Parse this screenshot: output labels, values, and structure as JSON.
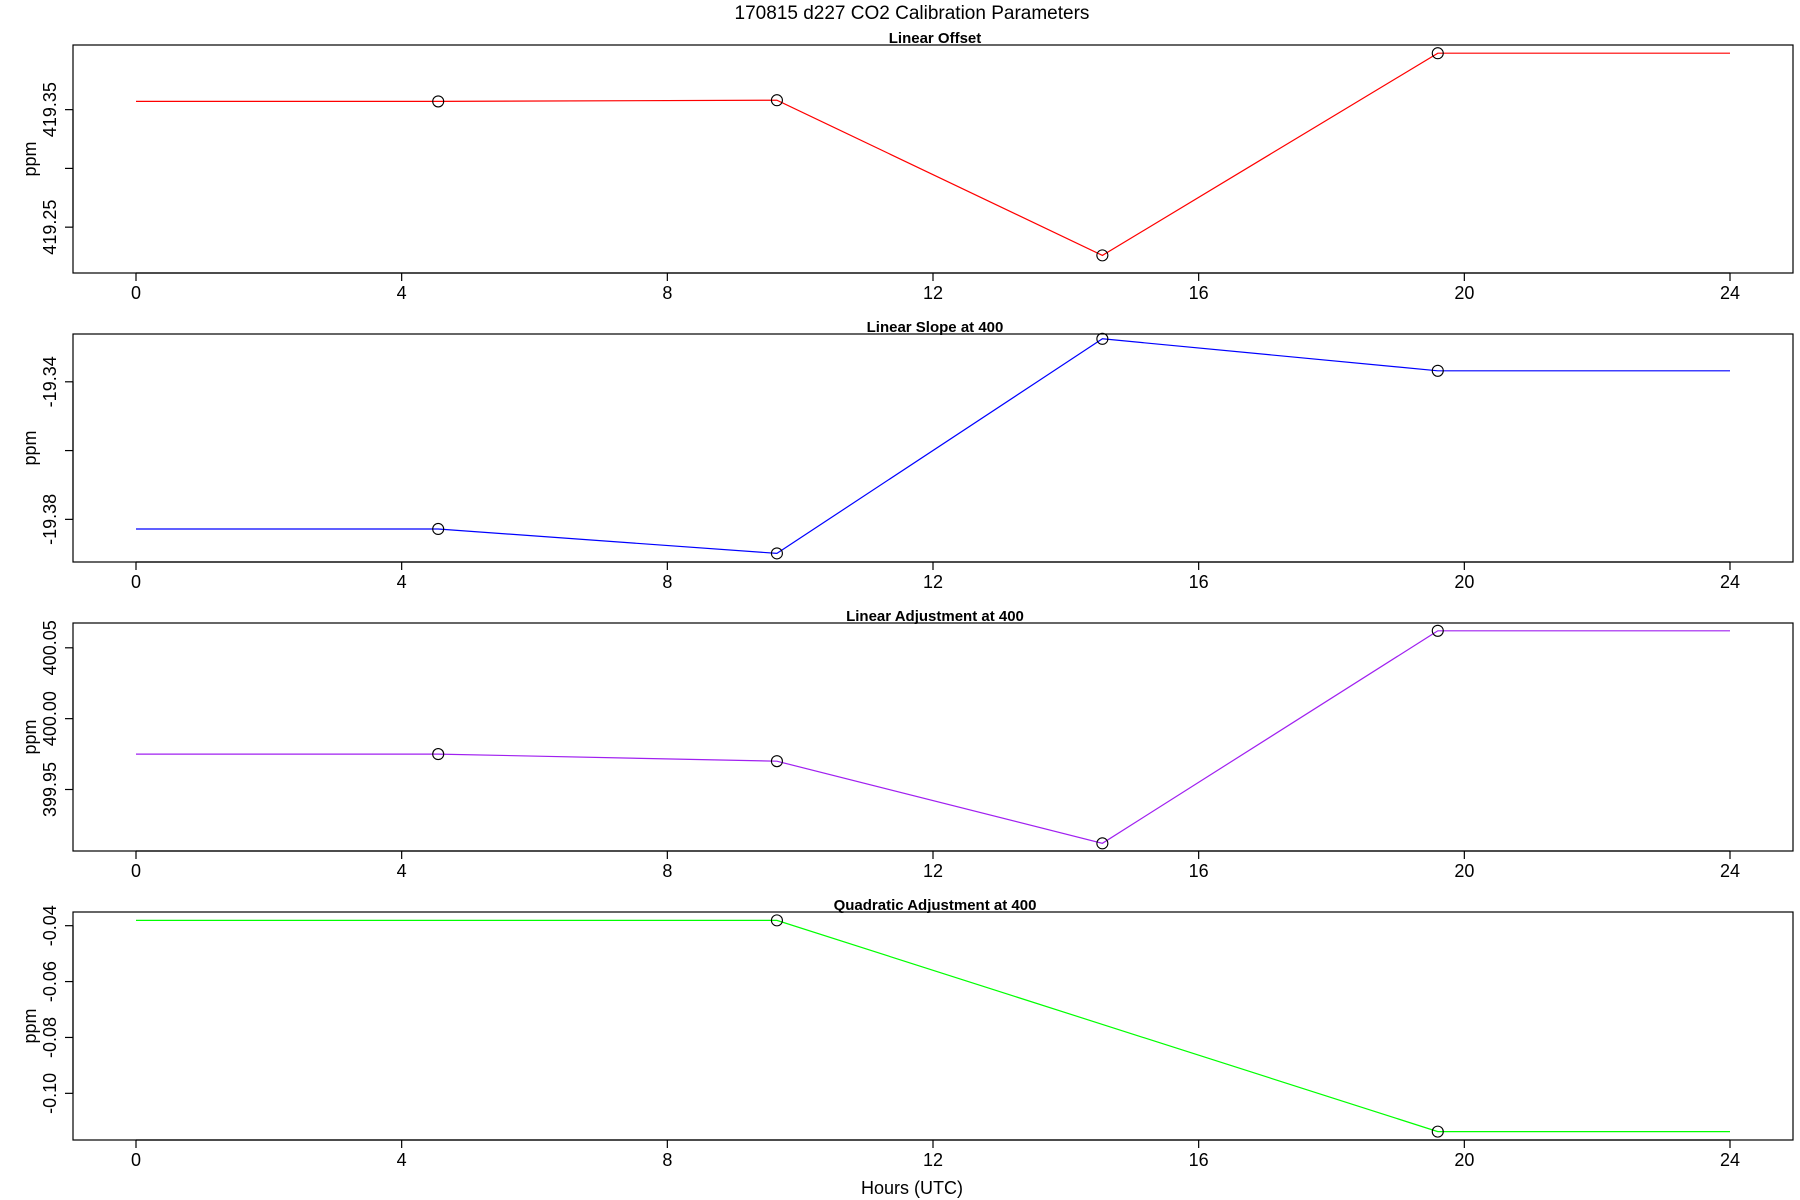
{
  "title": "170815   d227   CO2 Calibration Parameters",
  "xlabel": "Hours (UTC)",
  "chart_data": [
    {
      "type": "line",
      "title": "Linear Offset",
      "ylabel": "ppm",
      "color": "#ff0000",
      "x": [
        0,
        4.55,
        9.65,
        14.55,
        19.6,
        24
      ],
      "y": [
        419.357,
        419.357,
        419.358,
        419.226,
        419.398,
        419.398
      ],
      "markers": [
        false,
        true,
        true,
        true,
        true,
        false
      ],
      "xlim": [
        0,
        24
      ],
      "xticks": [
        0,
        4,
        8,
        12,
        16,
        20,
        24
      ],
      "ylim": [
        419.211,
        419.405
      ],
      "yticks": [
        419.25,
        419.3,
        419.35
      ],
      "ytick_labels": [
        "419.25",
        "",
        "419.35"
      ]
    },
    {
      "type": "line",
      "title": "Linear Slope at 400",
      "ylabel": "ppm",
      "color": "#0000ff",
      "x": [
        0,
        4.55,
        9.65,
        14.55,
        19.6,
        24
      ],
      "y": [
        -19.3828,
        -19.3828,
        -19.3899,
        -19.3275,
        -19.3368,
        -19.3368
      ],
      "markers": [
        false,
        true,
        true,
        true,
        true,
        false
      ],
      "xlim": [
        0,
        24
      ],
      "xticks": [
        0,
        4,
        8,
        12,
        16,
        20,
        24
      ],
      "ylim": [
        -19.3924,
        -19.3261
      ],
      "yticks": [
        -19.38,
        -19.36,
        -19.34
      ],
      "ytick_labels": [
        "-19.38",
        "",
        "-19.34"
      ]
    },
    {
      "type": "line",
      "title": "Linear Adjustment at 400",
      "ylabel": "ppm",
      "color": "#a020f0",
      "x": [
        0,
        4.55,
        9.65,
        14.55,
        19.6,
        24
      ],
      "y": [
        399.975,
        399.975,
        399.97,
        399.912,
        400.062,
        400.062
      ],
      "markers": [
        false,
        true,
        true,
        true,
        true,
        false
      ],
      "xlim": [
        0,
        24
      ],
      "xticks": [
        0,
        4,
        8,
        12,
        16,
        20,
        24
      ],
      "ylim": [
        399.9066,
        400.0675
      ],
      "yticks": [
        399.95,
        400.0,
        400.05
      ],
      "ytick_labels": [
        "399.95",
        "400.00",
        "400.05"
      ]
    },
    {
      "type": "line",
      "title": "Quadratic Adjustment at 400",
      "ylabel": "ppm",
      "color": "#00ff00",
      "x": [
        0,
        9.65,
        19.6,
        24
      ],
      "y": [
        -0.0381,
        -0.0381,
        -0.1137,
        -0.1137
      ],
      "markers": [
        false,
        true,
        true,
        false
      ],
      "xlim": [
        0,
        24
      ],
      "xticks": [
        0,
        4,
        8,
        12,
        16,
        20,
        24
      ],
      "ylim": [
        -0.1167,
        -0.0351
      ],
      "yticks": [
        -0.1,
        -0.08,
        -0.06,
        -0.04
      ],
      "ytick_labels": [
        "-0.10",
        "-0.08",
        "-0.06",
        "-0.04"
      ]
    }
  ]
}
